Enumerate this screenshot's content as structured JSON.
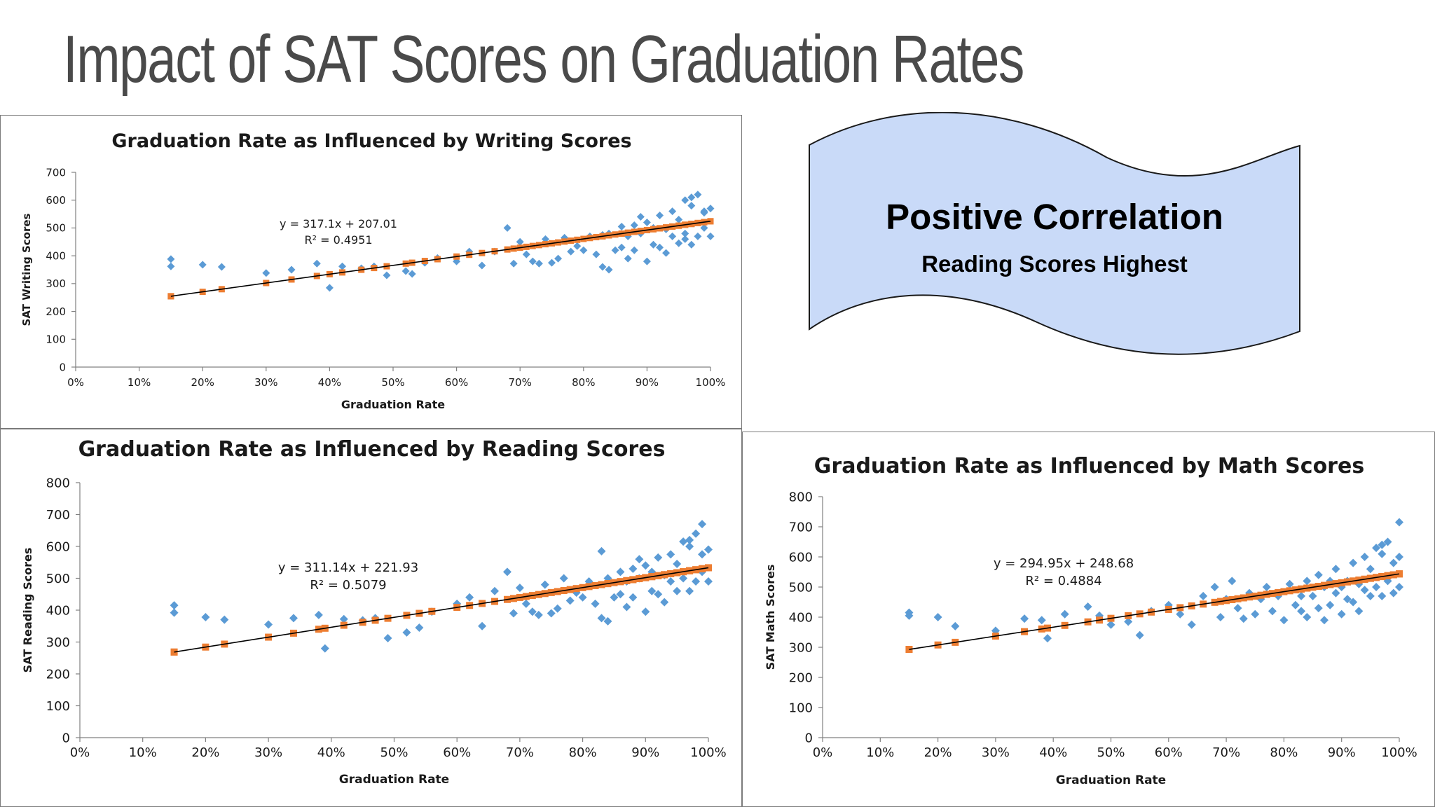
{
  "slide": {
    "title": "Impact of SAT Scores on Graduation Rates"
  },
  "callout": {
    "headline": "Positive Correlation",
    "subtext": "Reading Scores Highest",
    "fill_color": "#c9daf8",
    "stroke_color": "#1a1a1a"
  },
  "colors": {
    "scatter_points": "#5b9bd5",
    "trend_markers": "#ed7d31",
    "trend_line": "#000000"
  },
  "chart_data": [
    {
      "id": "writing",
      "type": "scatter",
      "title": "Graduation Rate as Influenced by Writing Scores",
      "xlabel": "Graduation Rate",
      "ylabel": "SAT Writing Scores",
      "x_ticks": [
        "0%",
        "10%",
        "20%",
        "30%",
        "40%",
        "50%",
        "60%",
        "70%",
        "80%",
        "90%",
        "100%"
      ],
      "y_ticks": [
        "0",
        "100",
        "200",
        "300",
        "400",
        "500",
        "600",
        "700"
      ],
      "xlim": [
        0,
        1
      ],
      "ylim": [
        0,
        700
      ],
      "trendline": {
        "slope": 317.1,
        "intercept": 207.01
      },
      "equation": "y = 317.1x + 207.01",
      "r_squared": "R² = 0.4951",
      "series": [
        {
          "name": "",
          "x": [
            0.15,
            0.15,
            0.2,
            0.23,
            0.3,
            0.34,
            0.38,
            0.4,
            0.42,
            0.45,
            0.47,
            0.49,
            0.52,
            0.53,
            0.55,
            0.57,
            0.6,
            0.62,
            0.64,
            0.66,
            0.68,
            0.69,
            0.7,
            0.71,
            0.72,
            0.73,
            0.74,
            0.75,
            0.76,
            0.77,
            0.78,
            0.79,
            0.8,
            0.81,
            0.82,
            0.83,
            0.83,
            0.84,
            0.84,
            0.85,
            0.86,
            0.86,
            0.87,
            0.87,
            0.88,
            0.88,
            0.89,
            0.89,
            0.9,
            0.9,
            0.91,
            0.91,
            0.92,
            0.92,
            0.93,
            0.93,
            0.94,
            0.94,
            0.95,
            0.95,
            0.96,
            0.96,
            0.97,
            0.97,
            0.98,
            0.98,
            0.99,
            0.99,
            1.0,
            1.0,
            0.97,
            0.99,
            0.96
          ],
          "y": [
            388,
            362,
            368,
            360,
            338,
            350,
            372,
            285,
            362,
            355,
            362,
            330,
            345,
            335,
            375,
            392,
            380,
            415,
            365,
            415,
            500,
            372,
            450,
            405,
            380,
            372,
            460,
            375,
            390,
            465,
            415,
            435,
            420,
            470,
            405,
            360,
            475,
            480,
            350,
            420,
            505,
            430,
            470,
            390,
            510,
            420,
            540,
            480,
            520,
            380,
            500,
            440,
            545,
            430,
            495,
            410,
            560,
            470,
            530,
            445,
            600,
            480,
            580,
            440,
            620,
            470,
            560,
            500,
            570,
            470,
            610,
            555,
            460
          ]
        }
      ]
    },
    {
      "id": "reading",
      "type": "scatter",
      "title": "Graduation Rate as Influenced by Reading Scores",
      "xlabel": "Graduation Rate",
      "ylabel": "SAT Reading Scores",
      "x_ticks": [
        "0%",
        "10%",
        "20%",
        "30%",
        "40%",
        "50%",
        "60%",
        "70%",
        "80%",
        "90%",
        "100%"
      ],
      "y_ticks": [
        "0",
        "100",
        "200",
        "300",
        "400",
        "500",
        "600",
        "700",
        "800"
      ],
      "xlim": [
        0,
        1
      ],
      "ylim": [
        0,
        800
      ],
      "trendline": {
        "slope": 311.14,
        "intercept": 221.93
      },
      "equation": "y = 311.14x + 221.93",
      "r_squared": "R² = 0.5079",
      "series": [
        {
          "name": "",
          "x": [
            0.15,
            0.15,
            0.2,
            0.23,
            0.3,
            0.34,
            0.38,
            0.39,
            0.42,
            0.45,
            0.47,
            0.49,
            0.52,
            0.54,
            0.56,
            0.6,
            0.62,
            0.64,
            0.66,
            0.68,
            0.69,
            0.7,
            0.71,
            0.72,
            0.73,
            0.74,
            0.75,
            0.76,
            0.77,
            0.78,
            0.79,
            0.8,
            0.81,
            0.82,
            0.83,
            0.83,
            0.84,
            0.84,
            0.85,
            0.86,
            0.86,
            0.87,
            0.87,
            0.88,
            0.88,
            0.89,
            0.89,
            0.9,
            0.9,
            0.91,
            0.91,
            0.92,
            0.92,
            0.93,
            0.93,
            0.94,
            0.94,
            0.95,
            0.95,
            0.96,
            0.96,
            0.97,
            0.97,
            0.98,
            0.98,
            0.99,
            0.99,
            1.0,
            1.0,
            0.97,
            0.99
          ],
          "y": [
            415,
            392,
            378,
            370,
            355,
            375,
            385,
            280,
            372,
            368,
            375,
            312,
            330,
            345,
            395,
            420,
            440,
            350,
            460,
            520,
            390,
            470,
            420,
            395,
            385,
            480,
            390,
            405,
            500,
            430,
            455,
            440,
            490,
            420,
            375,
            585,
            500,
            365,
            440,
            520,
            450,
            490,
            410,
            530,
            440,
            560,
            500,
            540,
            395,
            520,
            460,
            565,
            450,
            510,
            425,
            575,
            490,
            545,
            460,
            615,
            500,
            600,
            460,
            640,
            490,
            575,
            520,
            590,
            490,
            620,
            670
          ]
        }
      ]
    },
    {
      "id": "math",
      "type": "scatter",
      "title": "Graduation Rate as Influenced by Math Scores",
      "xlabel": "Graduation Rate",
      "ylabel": "SAT Math Scores",
      "x_ticks": [
        "0%",
        "10%",
        "20%",
        "30%",
        "40%",
        "50%",
        "60%",
        "70%",
        "80%",
        "90%",
        "100%"
      ],
      "y_ticks": [
        "0",
        "100",
        "200",
        "300",
        "400",
        "500",
        "600",
        "700",
        "800"
      ],
      "xlim": [
        0,
        1
      ],
      "ylim": [
        0,
        800
      ],
      "trendline": {
        "slope": 294.95,
        "intercept": 248.68
      },
      "equation": "y = 294.95x + 248.68",
      "r_squared": "R² = 0.4884",
      "series": [
        {
          "name": "",
          "x": [
            0.15,
            0.15,
            0.2,
            0.23,
            0.3,
            0.35,
            0.38,
            0.39,
            0.42,
            0.46,
            0.48,
            0.5,
            0.53,
            0.55,
            0.57,
            0.6,
            0.62,
            0.64,
            0.66,
            0.68,
            0.69,
            0.7,
            0.71,
            0.72,
            0.73,
            0.74,
            0.75,
            0.76,
            0.77,
            0.78,
            0.79,
            0.8,
            0.81,
            0.82,
            0.83,
            0.83,
            0.84,
            0.84,
            0.85,
            0.86,
            0.86,
            0.87,
            0.87,
            0.88,
            0.88,
            0.89,
            0.89,
            0.9,
            0.9,
            0.91,
            0.91,
            0.92,
            0.92,
            0.93,
            0.93,
            0.94,
            0.94,
            0.95,
            0.95,
            0.96,
            0.96,
            0.97,
            0.97,
            0.98,
            0.98,
            0.99,
            0.99,
            1.0,
            1.0,
            0.97,
            1.0
          ],
          "y": [
            415,
            405,
            400,
            370,
            355,
            395,
            390,
            330,
            410,
            435,
            405,
            375,
            385,
            340,
            420,
            440,
            410,
            375,
            470,
            500,
            400,
            460,
            520,
            430,
            395,
            480,
            410,
            460,
            500,
            420,
            470,
            390,
            510,
            440,
            470,
            420,
            520,
            400,
            470,
            540,
            430,
            500,
            390,
            520,
            440,
            560,
            480,
            500,
            410,
            520,
            460,
            580,
            450,
            510,
            420,
            600,
            490,
            560,
            470,
            630,
            500,
            610,
            470,
            650,
            520,
            580,
            480,
            600,
            500,
            640,
            715
          ]
        }
      ]
    }
  ]
}
